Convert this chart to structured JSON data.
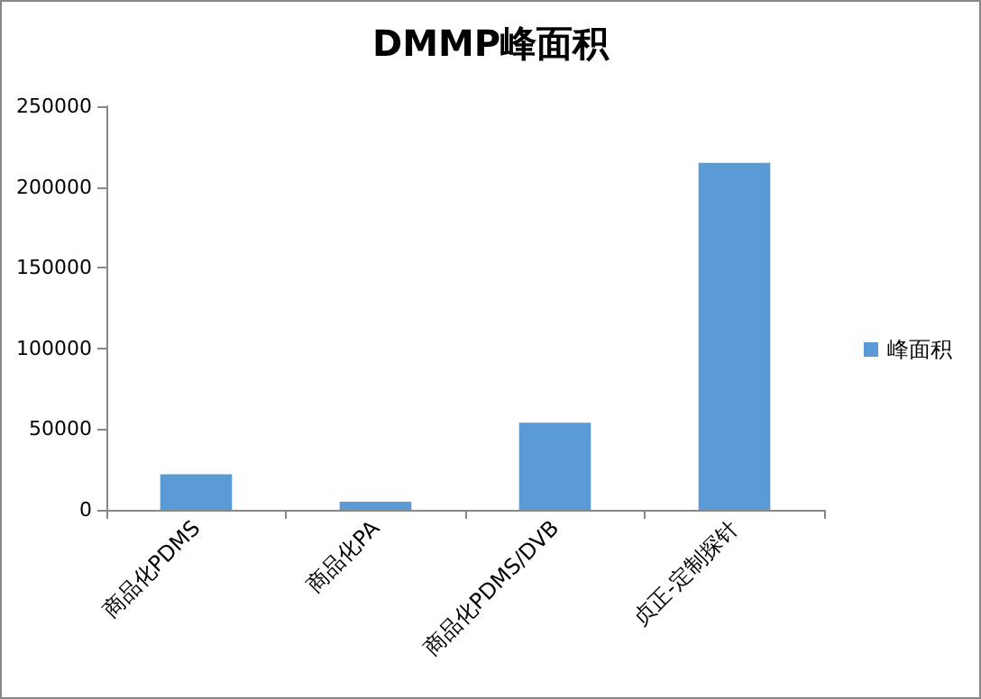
{
  "chart_data": {
    "type": "bar",
    "title": "DMMP峰面积",
    "categories": [
      "商品化PDMS",
      "商品化PA",
      "商品化PDMS/DVB",
      "贞正-定制探针"
    ],
    "series": [
      {
        "name": "峰面积",
        "color": "#5b9bd5",
        "values": [
          22000,
          5000,
          54000,
          215000
        ]
      }
    ],
    "ylim": [
      0,
      250000
    ],
    "yticks": [
      0,
      50000,
      100000,
      150000,
      200000,
      250000
    ],
    "grid": false,
    "legend": "right"
  }
}
